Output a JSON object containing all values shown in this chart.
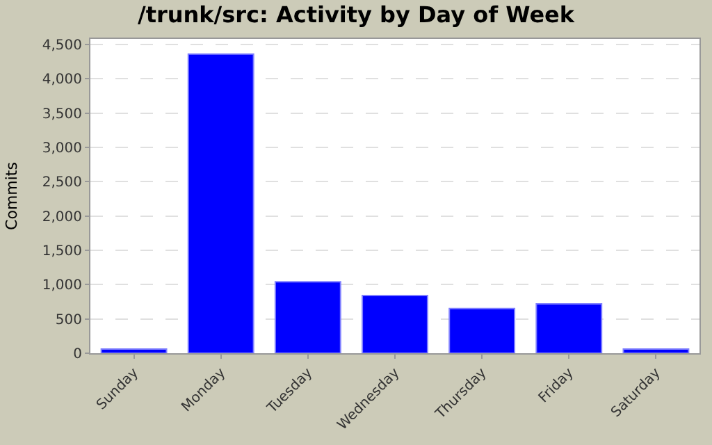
{
  "chart_data": {
    "type": "bar",
    "title": "/trunk/src: Activity by Day of Week",
    "ylabel": "Commits",
    "categories": [
      "Sunday",
      "Monday",
      "Tuesday",
      "Wednesday",
      "Thursday",
      "Friday",
      "Saturday"
    ],
    "values": [
      60,
      4360,
      1040,
      840,
      650,
      720,
      60
    ],
    "color": "#0000ff",
    "ylim": [
      0,
      4580
    ],
    "yticks": [
      {
        "value": 0,
        "label": "0"
      },
      {
        "value": 500,
        "label": "500"
      },
      {
        "value": 1000,
        "label": "1,000"
      },
      {
        "value": 1500,
        "label": "1,500"
      },
      {
        "value": 2000,
        "label": "2,000"
      },
      {
        "value": 2500,
        "label": "2,500"
      },
      {
        "value": 3000,
        "label": "3,000"
      },
      {
        "value": 3500,
        "label": "3,500"
      },
      {
        "value": 4000,
        "label": "4,000"
      },
      {
        "value": 4500,
        "label": "4,500"
      }
    ],
    "grid": "y"
  }
}
